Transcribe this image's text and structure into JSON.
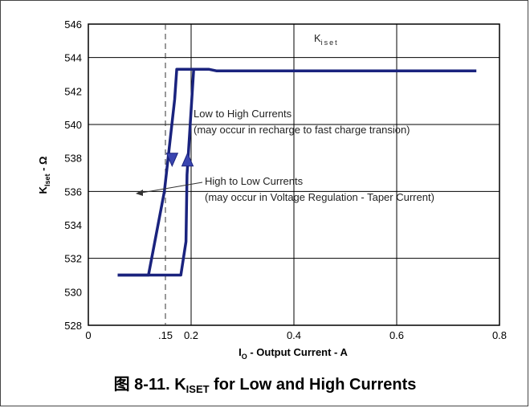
{
  "chart_data": {
    "type": "line",
    "ylabel": {
      "main": "K",
      "sub": "Iset",
      "suffix": " - Ω"
    },
    "xlabel": {
      "main": "I",
      "sub": "O",
      "suffix": " - Output Current - A"
    },
    "xlim": [
      0,
      0.8
    ],
    "ylim": [
      528,
      546
    ],
    "x_ticks": [
      {
        "value": 0,
        "label": "0"
      },
      {
        "value": 0.15,
        "label": ".15"
      },
      {
        "value": 0.2,
        "label": "0.2"
      },
      {
        "value": 0.4,
        "label": "0.4"
      },
      {
        "value": 0.6,
        "label": "0.6"
      },
      {
        "value": 0.8,
        "label": "0.8"
      }
    ],
    "y_ticks": [
      528,
      530,
      532,
      534,
      536,
      538,
      540,
      542,
      544,
      546
    ],
    "y_grid": [
      532,
      536,
      540,
      544
    ],
    "x_grid": [
      0.2,
      0.4,
      0.6
    ],
    "reference_line_x": 0.15,
    "series_color": "#1a237e",
    "series": [
      {
        "x": [
          0.057,
          0.117,
          0.148,
          0.168,
          0.172,
          0.235,
          0.25,
          0.3,
          0.4,
          0.5,
          0.6,
          0.655,
          0.755
        ],
        "y": [
          531.0,
          531.0,
          536.0,
          541.5,
          543.3,
          543.3,
          543.2,
          543.2,
          543.2,
          543.2,
          543.2,
          543.2,
          543.2
        ]
      },
      {
        "x": [
          0.057,
          0.09,
          0.18,
          0.19,
          0.192,
          0.205
        ],
        "y": [
          531.0,
          531.0,
          531.0,
          533.0,
          537.0,
          543.3
        ]
      }
    ],
    "markers": [
      {
        "x": 0.163,
        "y": 537.9,
        "direction": "down"
      },
      {
        "x": 0.193,
        "y": 537.9,
        "direction": "up"
      }
    ],
    "annotations": {
      "title_label": {
        "main": "K",
        "sub": "iset"
      },
      "low_to_high": {
        "line1": "Low to High Currents",
        "line2": "(may occur in recharge to fast charge transion)"
      },
      "high_to_low": {
        "line1": "High to Low Currents",
        "line2": "(may occur in Voltage Regulation - Taper Current)"
      }
    }
  },
  "caption": {
    "prefix": "图 8-11. K",
    "sub": "ISET",
    "suffix": " for Low and High Currents"
  }
}
